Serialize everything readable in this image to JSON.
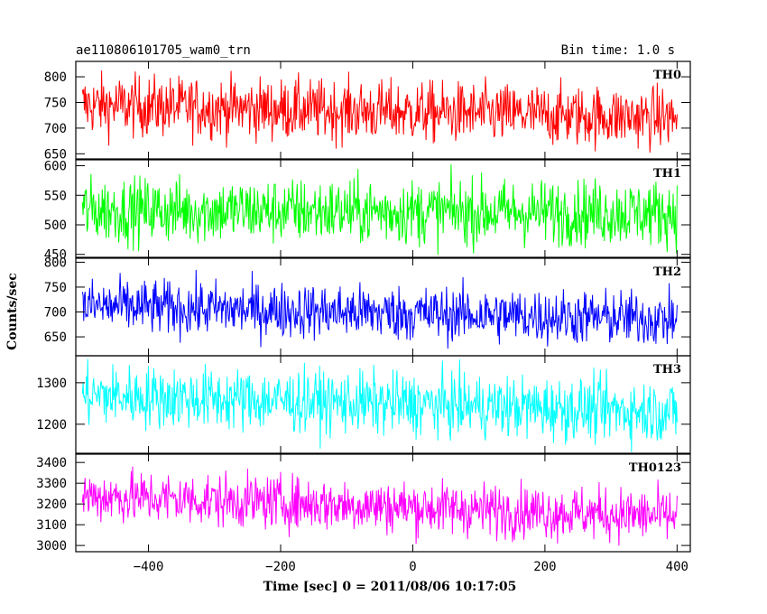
{
  "header": {
    "title": "ae110806101705_wam0_trn",
    "bin_time": "Bin time: 1.0 s"
  },
  "chart_data": {
    "type": "line",
    "xlabel": "Time [sec] 0 = 2011/08/06 10:17:05",
    "ylabel": "Counts/sec",
    "xlim": [
      -510,
      420
    ],
    "x_ticks": [
      -400,
      -200,
      0,
      200,
      400
    ],
    "x_range_data": [
      -500,
      400
    ],
    "bin_seconds": 1.0,
    "grid": false,
    "panels": [
      {
        "name": "TH0",
        "color": "#ff0000",
        "ylim": [
          640,
          830
        ],
        "yticks": [
          700,
          750,
          800
        ],
        "tick_labels": [
          "700",
          "750",
          "800"
        ],
        "minor": [
          650
        ],
        "minor_labels": [
          "650"
        ],
        "start_mean": 745,
        "end_mean": 720,
        "noise": 30
      },
      {
        "name": "TH1",
        "color": "#00ff00",
        "ylim": [
          445,
          610
        ],
        "yticks": [
          450,
          500,
          550,
          600
        ],
        "tick_labels": [
          "450",
          "500",
          "550",
          "600"
        ],
        "minor": [],
        "minor_labels": [],
        "start_mean": 525,
        "end_mean": 520,
        "noise": 28
      },
      {
        "name": "TH2",
        "color": "#0000ff",
        "ylim": [
          612,
          808
        ],
        "yticks": [
          650,
          700,
          750,
          800
        ],
        "tick_labels": [
          "650",
          "700",
          "750",
          "800"
        ],
        "minor": [],
        "minor_labels": [],
        "start_mean": 712,
        "end_mean": 685,
        "noise": 28
      },
      {
        "name": "TH3",
        "color": "#00ffff",
        "ylim": [
          1130,
          1365
        ],
        "yticks": [
          1200,
          1300
        ],
        "tick_labels": [
          "1200",
          "1300"
        ],
        "minor": [],
        "minor_labels": [],
        "start_mean": 1270,
        "end_mean": 1230,
        "noise": 38
      },
      {
        "name": "TH0123",
        "color": "#ff00ff",
        "ylim": [
          2970,
          3440
        ],
        "yticks": [
          3000,
          3100,
          3200,
          3300,
          3400
        ],
        "tick_labels": [
          "3000",
          "3100",
          "3200",
          "3300",
          "3400"
        ],
        "minor": [],
        "minor_labels": [],
        "start_mean": 3240,
        "end_mean": 3140,
        "noise": 65
      }
    ]
  }
}
